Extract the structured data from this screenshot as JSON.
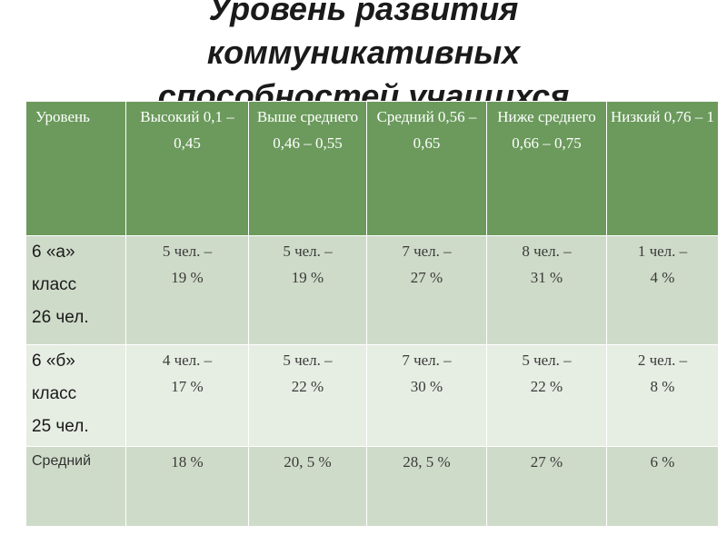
{
  "title": {
    "line1": "Уровень развития",
    "line2": "коммуникативных",
    "line3": "способностей учащихся"
  },
  "table": {
    "header": [
      {
        "lines": [
          "Уровень"
        ]
      },
      {
        "lines": [
          "Высокий",
          "0,1 – 0,45"
        ]
      },
      {
        "lines": [
          "Выше",
          "среднего",
          "0,46 – 0,55"
        ]
      },
      {
        "lines": [
          "Средний",
          "0,56 – 0,65"
        ]
      },
      {
        "lines": [
          "Ниже",
          "среднего",
          "0,66 – 0,75"
        ]
      },
      {
        "lines": [
          "Низкий",
          "0,76 – 1"
        ]
      }
    ],
    "rows": [
      {
        "label": [
          "6 «а»",
          "класс",
          "26 чел."
        ],
        "cells": [
          [
            "5 чел. –",
            "19 %"
          ],
          [
            "5 чел. –",
            "19 %"
          ],
          [
            "7 чел. –",
            "27 %"
          ],
          [
            "8 чел. –",
            "31 %"
          ],
          [
            "1 чел. –",
            "4 %"
          ]
        ]
      },
      {
        "label": [
          "6 «б»",
          "класс",
          "25 чел."
        ],
        "cells": [
          [
            "4 чел. –",
            "17 %"
          ],
          [
            "5 чел. –",
            "22 %"
          ],
          [
            "7 чел. –",
            "30 %"
          ],
          [
            "5 чел. –",
            "22 %"
          ],
          [
            "2 чел. –",
            "8 %"
          ]
        ]
      },
      {
        "label": [
          "Средний"
        ],
        "cells": [
          [
            "18 %"
          ],
          [
            "20, 5 %"
          ],
          [
            "28, 5 %"
          ],
          [
            "27 %"
          ],
          [
            "6 %"
          ]
        ]
      }
    ]
  },
  "colors": {
    "header_bg": "#6b9a5c",
    "row_dark": "#cfdbc9",
    "row_light": "#e6ede3"
  }
}
